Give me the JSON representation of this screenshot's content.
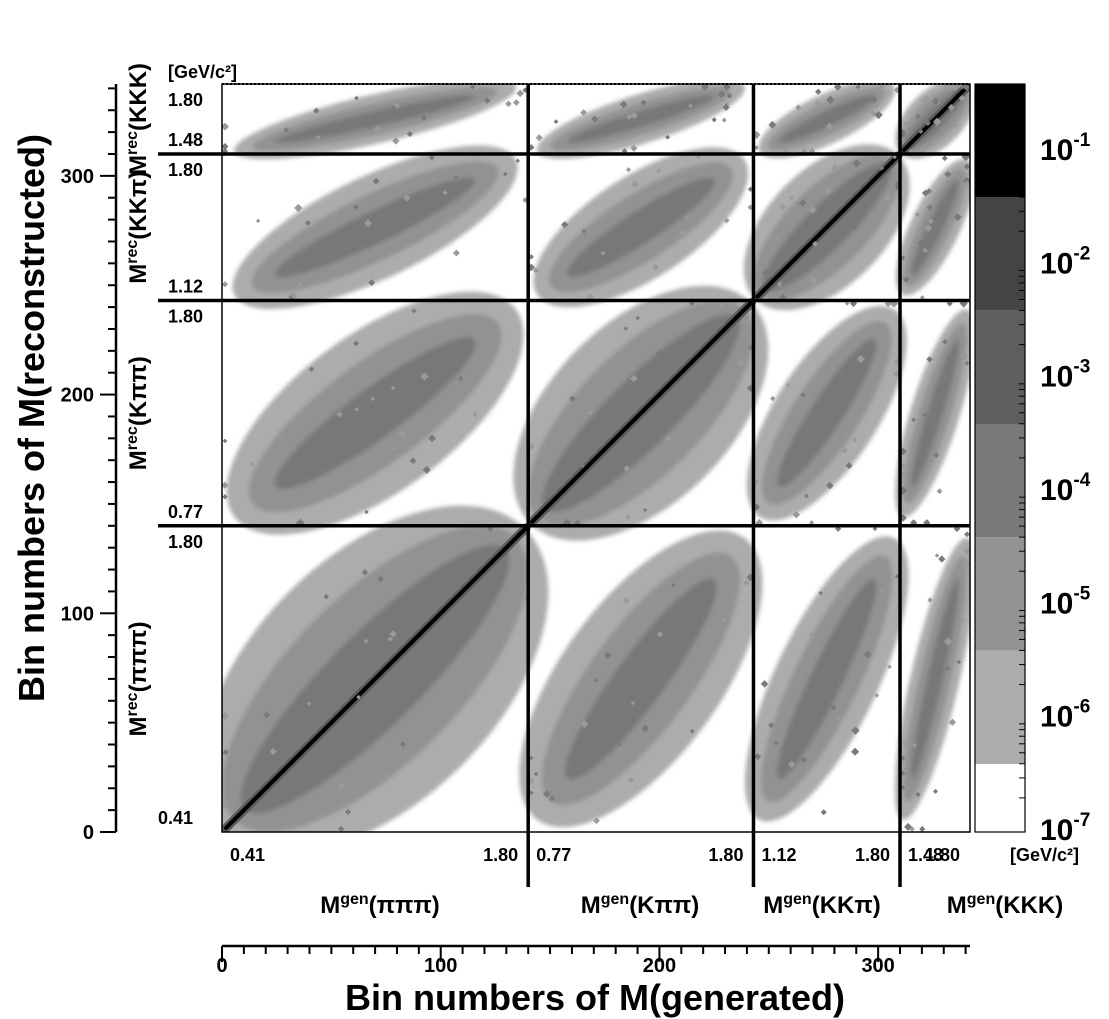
{
  "chart_data": {
    "type": "heatmap",
    "x_title": "Bin numbers of M(generated)",
    "y_title": "Bin numbers of M(reconstructed)",
    "x_ticks": [
      0,
      100,
      200,
      300
    ],
    "y_ticks": [
      0,
      100,
      200,
      300
    ],
    "axis_range": [
      0,
      342
    ],
    "unit_label": "[GeV/c²]",
    "block_boundaries": [
      0,
      140,
      243,
      310,
      342
    ],
    "blocks": [
      {
        "gen_label": "M^gen(πππ)",
        "gen_sup": "gen",
        "gen_channel": "(πππ)",
        "rec_sup": "rec",
        "rec_channel": "(πππ)",
        "mass_low": "0.41",
        "mass_high": "1.80"
      },
      {
        "gen_label": "M^gen(Kππ)",
        "gen_sup": "gen",
        "gen_channel": "(Kππ)",
        "rec_sup": "rec",
        "rec_channel": "(Kππ)",
        "mass_low": "0.77",
        "mass_high": "1.80"
      },
      {
        "gen_label": "M^gen(KKπ)",
        "gen_sup": "gen",
        "gen_channel": "(KKπ)",
        "rec_sup": "rec",
        "rec_channel": "(KKπ)",
        "mass_low": "1.12",
        "mass_high": "1.80"
      },
      {
        "gen_label": "M^gen(KKK)",
        "gen_sup": "gen",
        "gen_channel": "(KKK)",
        "rec_sup": "rec",
        "rec_channel": "(KKK)",
        "mass_low": "1.48",
        "mass_high": "1.80"
      }
    ],
    "colorbar": {
      "scale": "log",
      "labels": [
        "10",
        "10",
        "10",
        "10",
        "10",
        "10",
        "10"
      ],
      "exponents": [
        "-1",
        "-2",
        "-3",
        "-4",
        "-5",
        "-6",
        "-7"
      ],
      "levels_log10": [
        -1,
        -2,
        -3,
        -4,
        -5,
        -6,
        -7
      ],
      "colors": [
        "#000000",
        "#444444",
        "#5e5e5e",
        "#787878",
        "#929292",
        "#acacac",
        "#ffffff"
      ]
    }
  }
}
